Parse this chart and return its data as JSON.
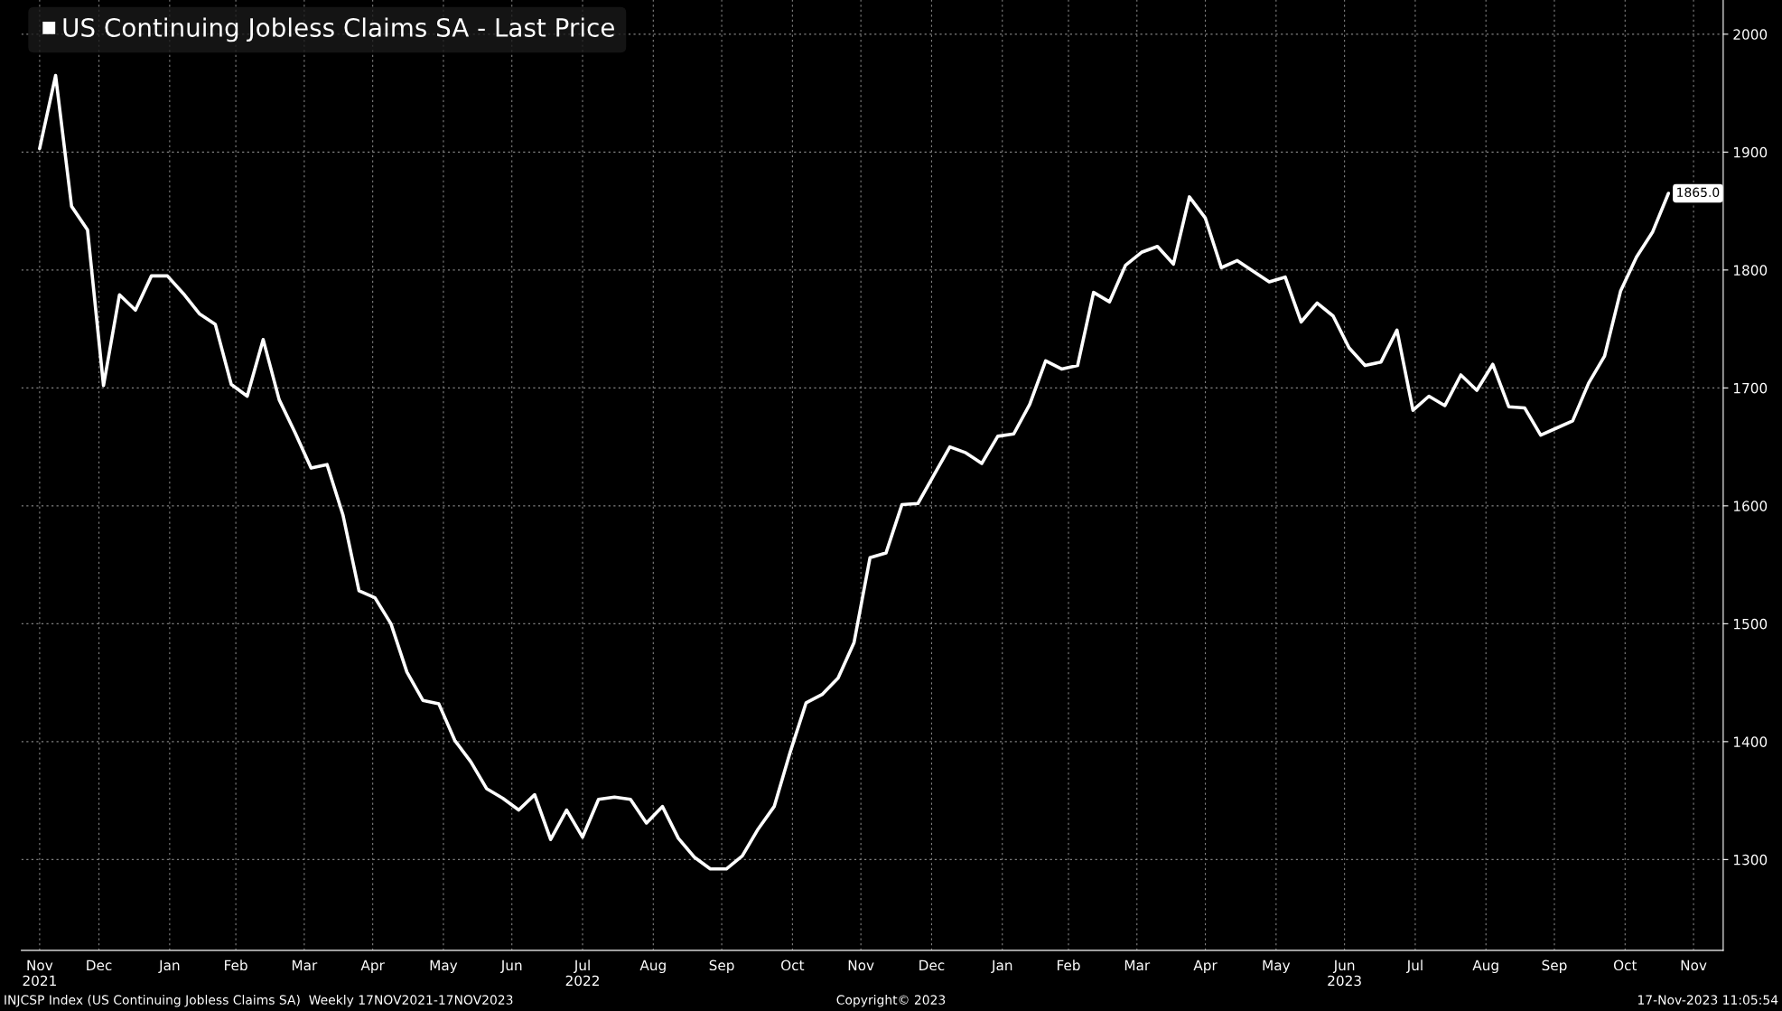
{
  "chart_data": {
    "type": "line",
    "x": [
      "2021-11-20",
      "2021-11-27",
      "2021-12-04",
      "2021-12-11",
      "2021-12-18",
      "2021-12-25",
      "2022-01-01",
      "2022-01-08",
      "2022-01-15",
      "2022-01-22",
      "2022-01-29",
      "2022-02-05",
      "2022-02-12",
      "2022-02-19",
      "2022-02-26",
      "2022-03-05",
      "2022-03-12",
      "2022-03-19",
      "2022-03-26",
      "2022-04-02",
      "2022-04-09",
      "2022-04-16",
      "2022-04-23",
      "2022-04-30",
      "2022-05-07",
      "2022-05-14",
      "2022-05-21",
      "2022-05-28",
      "2022-06-04",
      "2022-06-11",
      "2022-06-18",
      "2022-06-25",
      "2022-07-02",
      "2022-07-09",
      "2022-07-16",
      "2022-07-23",
      "2022-07-30",
      "2022-08-06",
      "2022-08-13",
      "2022-08-20",
      "2022-08-27",
      "2022-09-03",
      "2022-09-10",
      "2022-09-17",
      "2022-09-24",
      "2022-10-01",
      "2022-10-08",
      "2022-10-15",
      "2022-10-22",
      "2022-10-29",
      "2022-11-05",
      "2022-11-12",
      "2022-11-19",
      "2022-11-26",
      "2022-12-03",
      "2022-12-10",
      "2022-12-17",
      "2022-12-24",
      "2022-12-31",
      "2023-01-07",
      "2023-01-14",
      "2023-01-21",
      "2023-01-28",
      "2023-02-04",
      "2023-02-11",
      "2023-02-18",
      "2023-02-25",
      "2023-03-04",
      "2023-03-11",
      "2023-03-18",
      "2023-03-25",
      "2023-04-01",
      "2023-04-08",
      "2023-04-15",
      "2023-04-22",
      "2023-04-29",
      "2023-05-06",
      "2023-05-13",
      "2023-05-20",
      "2023-05-27",
      "2023-06-03",
      "2023-06-10",
      "2023-06-17",
      "2023-06-24",
      "2023-07-01",
      "2023-07-08",
      "2023-07-15",
      "2023-07-22",
      "2023-07-29",
      "2023-08-05",
      "2023-08-12",
      "2023-08-19",
      "2023-08-26",
      "2023-09-02",
      "2023-09-09",
      "2023-09-16",
      "2023-09-23",
      "2023-09-30",
      "2023-10-07",
      "2023-10-14",
      "2023-10-21",
      "2023-10-28",
      "2023-11-04"
    ],
    "series": [
      {
        "name": "US Continuing Jobless Claims SA - Last Price",
        "color": "#ffffff",
        "values": [
          1903,
          1965,
          1854,
          1834,
          1702,
          1779,
          1766,
          1795,
          1795,
          1780,
          1763,
          1754,
          1703,
          1693,
          1741,
          1690,
          1662,
          1632,
          1635,
          1592,
          1528,
          1522,
          1500,
          1459,
          1435,
          1432,
          1401,
          1383,
          1360,
          1352,
          1342,
          1355,
          1317,
          1342,
          1319,
          1351,
          1353,
          1351,
          1331,
          1345,
          1318,
          1302,
          1292,
          1292,
          1303,
          1326,
          1345,
          1391,
          1433,
          1440,
          1454,
          1484,
          1556,
          1560,
          1601,
          1602,
          1626,
          1650,
          1645,
          1636,
          1659,
          1661,
          1686,
          1723,
          1716,
          1719,
          1781,
          1773,
          1804,
          1815,
          1820,
          1805,
          1862,
          1844,
          1802,
          1808,
          1799,
          1790,
          1794,
          1756,
          1772,
          1761,
          1734,
          1719,
          1722,
          1749,
          1681,
          1693,
          1685,
          1711,
          1698,
          1720,
          1684,
          1683,
          1660,
          1666,
          1672,
          1704,
          1727,
          1782,
          1811,
          1832,
          1865
        ]
      }
    ],
    "xlim": [
      "2021-11-12",
      "2023-11-28"
    ],
    "xticks": [
      {
        "value": "2021-11-20",
        "label": "Nov\n2021"
      },
      {
        "value": "2021-12-16",
        "label": "Dec"
      },
      {
        "value": "2022-01-16",
        "label": "Jan"
      },
      {
        "value": "2022-02-14",
        "label": "Feb"
      },
      {
        "value": "2022-03-16",
        "label": "Mar"
      },
      {
        "value": "2022-04-15",
        "label": "Apr"
      },
      {
        "value": "2022-05-16",
        "label": "May"
      },
      {
        "value": "2022-06-15",
        "label": "Jun"
      },
      {
        "value": "2022-07-16",
        "label": "Jul\n2022"
      },
      {
        "value": "2022-08-16",
        "label": "Aug"
      },
      {
        "value": "2022-09-15",
        "label": "Sep"
      },
      {
        "value": "2022-10-16",
        "label": "Oct"
      },
      {
        "value": "2022-11-15",
        "label": "Nov"
      },
      {
        "value": "2022-12-16",
        "label": "Dec"
      },
      {
        "value": "2023-01-16",
        "label": "Jan"
      },
      {
        "value": "2023-02-14",
        "label": "Feb"
      },
      {
        "value": "2023-03-16",
        "label": "Mar"
      },
      {
        "value": "2023-04-15",
        "label": "Apr"
      },
      {
        "value": "2023-05-16",
        "label": "May"
      },
      {
        "value": "2023-06-15",
        "label": "Jun\n2023"
      },
      {
        "value": "2023-07-16",
        "label": "Jul"
      },
      {
        "value": "2023-08-16",
        "label": "Aug"
      },
      {
        "value": "2023-09-15",
        "label": "Sep"
      },
      {
        "value": "2023-10-16",
        "label": "Oct"
      },
      {
        "value": "2023-11-15",
        "label": "Nov"
      }
    ],
    "ylim": [
      1223,
      2029
    ],
    "yticks": [
      1300,
      1400,
      1500,
      1600,
      1700,
      1800,
      1900,
      2000
    ],
    "grid": true,
    "legend": "top left",
    "line_style": "solid",
    "marker": "none",
    "annotations": [
      {
        "text": "1865.0",
        "x": "2023-11-04",
        "y": 1865
      },
      "INJCSP Index (US Continuing Jobless Claims SA)  Weekly 17NOV2021-17NOV2023",
      "Copyright© 2023",
      "17-Nov-2023 11:05:54"
    ]
  }
}
